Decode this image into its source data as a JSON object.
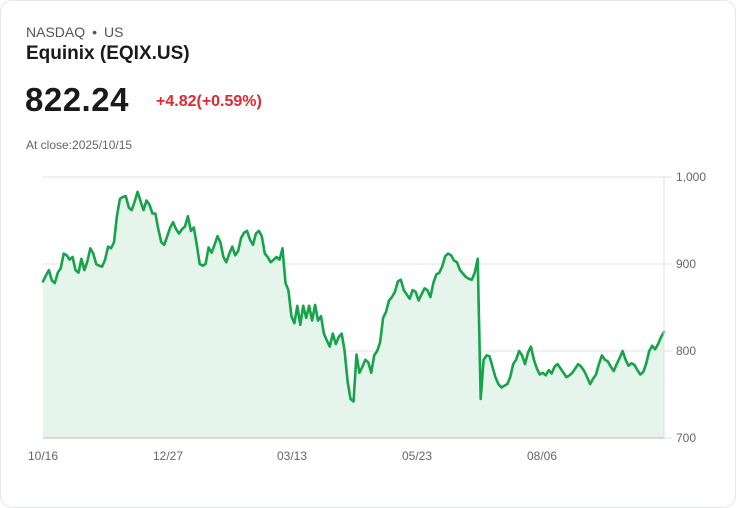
{
  "header": {
    "exchange": "NASDAQ",
    "separator": "•",
    "region": "US",
    "title": "Equinix (EQIX.US)",
    "price": "822.24",
    "change": "+4.82(+0.59%)",
    "close_label": "At close:2025/10/15"
  },
  "colors": {
    "line": "#16a34a",
    "fill": "#e6f5ec",
    "change": "#e0282e",
    "grid": "#e0e0e0"
  },
  "chart_data": {
    "type": "area",
    "title": "Equinix (EQIX.US)",
    "xlabel": "",
    "ylabel": "",
    "ylim": [
      700,
      1000
    ],
    "yticks": [
      1000,
      900,
      800,
      700
    ],
    "ytick_labels": [
      "1,000",
      "900",
      "800",
      "700"
    ],
    "xtick_labels": [
      "10/16",
      "12/27",
      "03/13",
      "05/23",
      "08/06"
    ],
    "grid": true,
    "legend": false,
    "series": [
      {
        "name": "EQIX.US",
        "values": [
          880,
          887,
          893,
          881,
          878,
          890,
          895,
          912,
          910,
          905,
          908,
          893,
          890,
          906,
          893,
          903,
          918,
          912,
          900,
          898,
          897,
          905,
          920,
          918,
          925,
          955,
          975,
          977,
          978,
          965,
          962,
          972,
          983,
          972,
          962,
          973,
          968,
          958,
          958,
          940,
          925,
          922,
          932,
          942,
          948,
          940,
          935,
          940,
          943,
          955,
          938,
          942,
          922,
          900,
          898,
          900,
          919,
          913,
          922,
          932,
          925,
          908,
          902,
          912,
          920,
          910,
          915,
          930,
          936,
          938,
          928,
          922,
          935,
          938,
          932,
          912,
          908,
          902,
          905,
          908,
          905,
          918,
          878,
          870,
          840,
          832,
          852,
          830,
          852,
          838,
          852,
          835,
          853,
          835,
          840,
          820,
          812,
          805,
          820,
          808,
          816,
          820,
          800,
          765,
          745,
          742,
          796,
          775,
          782,
          790,
          787,
          775,
          795,
          800,
          810,
          838,
          845,
          858,
          862,
          868,
          880,
          882,
          870,
          865,
          860,
          870,
          868,
          858,
          865,
          872,
          870,
          862,
          878,
          888,
          890,
          897,
          909,
          912,
          910,
          904,
          902,
          893,
          889,
          885,
          883,
          882,
          890,
          906,
          745,
          790,
          795,
          794,
          782,
          770,
          762,
          758,
          760,
          762,
          770,
          785,
          790,
          800,
          795,
          785,
          798,
          805,
          790,
          780,
          773,
          775,
          772,
          778,
          774,
          782,
          785,
          780,
          775,
          770,
          772,
          775,
          780,
          785,
          782,
          777,
          770,
          762,
          768,
          773,
          785,
          795,
          790,
          788,
          782,
          777,
          785,
          792,
          800,
          790,
          783,
          786,
          784,
          778,
          773,
          776,
          786,
          800,
          806,
          802,
          808,
          816,
          822
        ]
      }
    ]
  }
}
